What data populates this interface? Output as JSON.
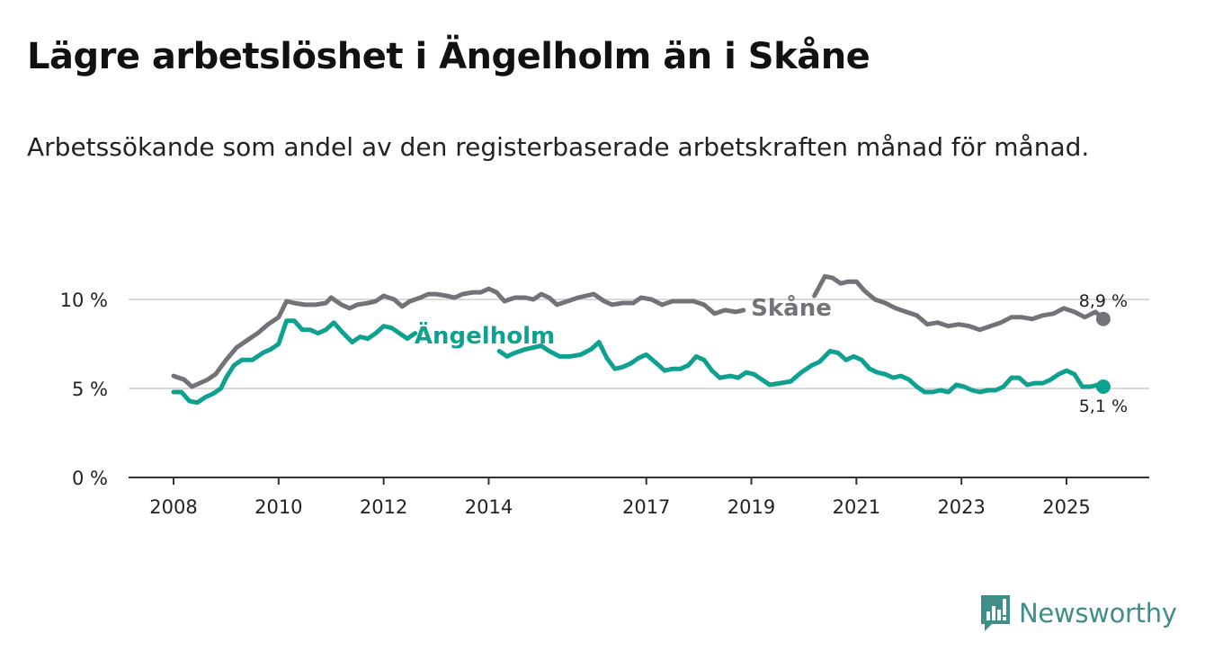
{
  "title": "Lägre arbetslöshet i Ängelholm än i Skåne",
  "subtitle": "Arbetssökande som andel av den registerbaserade arbetskraften månad för månad.",
  "brand": {
    "name": "Newsworthy",
    "color": "#3f8f87",
    "icon": "bar-chart-icon"
  },
  "chart_data": {
    "type": "line",
    "xlabel": "",
    "ylabel": "",
    "xlim": [
      2008,
      2025.75
    ],
    "ylim": [
      0,
      10
    ],
    "x_ticks": [
      2008,
      2010,
      2012,
      2014,
      2017,
      2019,
      2021,
      2023,
      2025
    ],
    "x_tick_labels": [
      "2008",
      "2010",
      "2012",
      "2014",
      "2017",
      "2019",
      "2021",
      "2023",
      "2025"
    ],
    "y_ticks": [
      0,
      5,
      10
    ],
    "y_tick_labels": [
      "0 %",
      "5 %",
      "10 %"
    ],
    "grid": true,
    "series": [
      {
        "name": "Skåne",
        "color": "#737278",
        "end_label": "8,9 %",
        "points": [
          [
            2008.0,
            5.7
          ],
          [
            2008.2,
            5.5
          ],
          [
            2008.35,
            5.1
          ],
          [
            2008.5,
            5.3
          ],
          [
            2008.65,
            5.5
          ],
          [
            2008.8,
            5.8
          ],
          [
            2009.0,
            6.6
          ],
          [
            2009.2,
            7.3
          ],
          [
            2009.4,
            7.7
          ],
          [
            2009.6,
            8.1
          ],
          [
            2009.8,
            8.6
          ],
          [
            2010.0,
            9.0
          ],
          [
            2010.15,
            9.9
          ],
          [
            2010.3,
            9.8
          ],
          [
            2010.5,
            9.7
          ],
          [
            2010.7,
            9.7
          ],
          [
            2010.9,
            9.8
          ],
          [
            2011.0,
            10.1
          ],
          [
            2011.2,
            9.7
          ],
          [
            2011.35,
            9.5
          ],
          [
            2011.5,
            9.7
          ],
          [
            2011.7,
            9.8
          ],
          [
            2011.85,
            9.9
          ],
          [
            2012.0,
            10.2
          ],
          [
            2012.2,
            10.0
          ],
          [
            2012.35,
            9.6
          ],
          [
            2012.5,
            9.9
          ],
          [
            2012.7,
            10.1
          ],
          [
            2012.85,
            10.3
          ],
          [
            2013.0,
            10.3
          ],
          [
            2013.2,
            10.2
          ],
          [
            2013.35,
            10.1
          ],
          [
            2013.5,
            10.3
          ],
          [
            2013.7,
            10.4
          ],
          [
            2013.85,
            10.4
          ],
          [
            2014.0,
            10.6
          ],
          [
            2014.15,
            10.4
          ],
          [
            2014.3,
            9.9
          ],
          [
            2014.5,
            10.1
          ],
          [
            2014.7,
            10.1
          ],
          [
            2014.85,
            10.0
          ],
          [
            2015.0,
            10.3
          ],
          [
            2015.15,
            10.1
          ],
          [
            2015.3,
            9.7
          ],
          [
            2015.5,
            9.9
          ],
          [
            2015.7,
            10.1
          ],
          [
            2015.85,
            10.2
          ],
          [
            2016.0,
            10.3
          ],
          [
            2016.2,
            9.9
          ],
          [
            2016.35,
            9.7
          ],
          [
            2016.55,
            9.8
          ],
          [
            2016.75,
            9.8
          ],
          [
            2016.9,
            10.1
          ],
          [
            2017.1,
            10.0
          ],
          [
            2017.3,
            9.7
          ],
          [
            2017.5,
            9.9
          ],
          [
            2017.7,
            9.9
          ],
          [
            2017.9,
            9.9
          ],
          [
            2018.1,
            9.7
          ],
          [
            2018.3,
            9.2
          ],
          [
            2018.5,
            9.4
          ],
          [
            2018.7,
            9.3
          ],
          [
            2018.85,
            9.4
          ]
        ],
        "points_b": [
          [
            2020.2,
            10.2
          ],
          [
            2020.4,
            11.3
          ],
          [
            2020.55,
            11.2
          ],
          [
            2020.7,
            10.9
          ],
          [
            2020.85,
            11.0
          ],
          [
            2021.0,
            11.0
          ],
          [
            2021.15,
            10.5
          ],
          [
            2021.35,
            10.0
          ],
          [
            2021.55,
            9.8
          ],
          [
            2021.75,
            9.5
          ],
          [
            2021.95,
            9.3
          ],
          [
            2022.15,
            9.1
          ],
          [
            2022.35,
            8.6
          ],
          [
            2022.55,
            8.7
          ],
          [
            2022.75,
            8.5
          ],
          [
            2022.95,
            8.6
          ],
          [
            2023.15,
            8.5
          ],
          [
            2023.35,
            8.3
          ],
          [
            2023.55,
            8.5
          ],
          [
            2023.75,
            8.7
          ],
          [
            2023.95,
            9.0
          ],
          [
            2024.15,
            9.0
          ],
          [
            2024.35,
            8.9
          ],
          [
            2024.55,
            9.1
          ],
          [
            2024.75,
            9.2
          ],
          [
            2024.95,
            9.5
          ],
          [
            2025.15,
            9.3
          ],
          [
            2025.35,
            9.0
          ],
          [
            2025.55,
            9.3
          ],
          [
            2025.7,
            8.9
          ]
        ]
      },
      {
        "name": "Ängelholm",
        "color": "#0fa190",
        "end_label": "5,1 %",
        "points": [
          [
            2008.0,
            4.8
          ],
          [
            2008.15,
            4.8
          ],
          [
            2008.3,
            4.3
          ],
          [
            2008.45,
            4.2
          ],
          [
            2008.6,
            4.5
          ],
          [
            2008.75,
            4.7
          ],
          [
            2008.9,
            5.0
          ],
          [
            2009.0,
            5.6
          ],
          [
            2009.15,
            6.3
          ],
          [
            2009.3,
            6.6
          ],
          [
            2009.5,
            6.6
          ],
          [
            2009.7,
            7.0
          ],
          [
            2009.85,
            7.2
          ],
          [
            2010.0,
            7.5
          ],
          [
            2010.15,
            8.8
          ],
          [
            2010.3,
            8.8
          ],
          [
            2010.45,
            8.3
          ],
          [
            2010.6,
            8.3
          ],
          [
            2010.75,
            8.1
          ],
          [
            2010.9,
            8.3
          ],
          [
            2011.05,
            8.7
          ],
          [
            2011.2,
            8.2
          ],
          [
            2011.4,
            7.6
          ],
          [
            2011.55,
            7.9
          ],
          [
            2011.7,
            7.8
          ],
          [
            2011.85,
            8.1
          ],
          [
            2012.0,
            8.5
          ],
          [
            2012.15,
            8.4
          ],
          [
            2012.3,
            8.1
          ],
          [
            2012.45,
            7.8
          ],
          [
            2012.6,
            8.1
          ]
        ],
        "points_b": [
          [
            2014.2,
            7.1
          ],
          [
            2014.35,
            6.8
          ],
          [
            2014.5,
            7.0
          ],
          [
            2014.7,
            7.2
          ],
          [
            2014.85,
            7.3
          ],
          [
            2015.0,
            7.4
          ],
          [
            2015.15,
            7.1
          ],
          [
            2015.35,
            6.8
          ],
          [
            2015.55,
            6.8
          ],
          [
            2015.75,
            6.9
          ],
          [
            2015.95,
            7.2
          ],
          [
            2016.1,
            7.6
          ],
          [
            2016.25,
            6.7
          ],
          [
            2016.4,
            6.1
          ],
          [
            2016.55,
            6.2
          ],
          [
            2016.7,
            6.4
          ],
          [
            2016.85,
            6.7
          ],
          [
            2017.0,
            6.9
          ],
          [
            2017.2,
            6.4
          ],
          [
            2017.35,
            6.0
          ],
          [
            2017.5,
            6.1
          ],
          [
            2017.65,
            6.1
          ],
          [
            2017.8,
            6.3
          ],
          [
            2017.95,
            6.8
          ],
          [
            2018.1,
            6.6
          ],
          [
            2018.25,
            6.0
          ],
          [
            2018.4,
            5.6
          ],
          [
            2018.6,
            5.7
          ],
          [
            2018.75,
            5.6
          ],
          [
            2018.9,
            5.9
          ],
          [
            2019.05,
            5.8
          ],
          [
            2019.2,
            5.5
          ],
          [
            2019.35,
            5.2
          ],
          [
            2019.55,
            5.3
          ],
          [
            2019.75,
            5.4
          ],
          [
            2019.95,
            5.9
          ],
          [
            2020.15,
            6.3
          ],
          [
            2020.3,
            6.5
          ],
          [
            2020.5,
            7.1
          ],
          [
            2020.65,
            7.0
          ],
          [
            2020.8,
            6.6
          ],
          [
            2020.95,
            6.8
          ],
          [
            2021.1,
            6.6
          ],
          [
            2021.25,
            6.1
          ],
          [
            2021.4,
            5.9
          ],
          [
            2021.55,
            5.8
          ],
          [
            2021.7,
            5.6
          ],
          [
            2021.85,
            5.7
          ],
          [
            2022.0,
            5.5
          ],
          [
            2022.15,
            5.1
          ],
          [
            2022.3,
            4.8
          ],
          [
            2022.45,
            4.8
          ],
          [
            2022.6,
            4.9
          ],
          [
            2022.75,
            4.8
          ],
          [
            2022.9,
            5.2
          ],
          [
            2023.05,
            5.1
          ],
          [
            2023.2,
            4.9
          ],
          [
            2023.35,
            4.8
          ],
          [
            2023.5,
            4.9
          ],
          [
            2023.65,
            4.9
          ],
          [
            2023.8,
            5.1
          ],
          [
            2023.95,
            5.6
          ],
          [
            2024.1,
            5.6
          ],
          [
            2024.25,
            5.2
          ],
          [
            2024.4,
            5.3
          ],
          [
            2024.55,
            5.3
          ],
          [
            2024.7,
            5.5
          ],
          [
            2024.85,
            5.8
          ],
          [
            2025.0,
            6.0
          ],
          [
            2025.15,
            5.8
          ],
          [
            2025.3,
            5.1
          ],
          [
            2025.45,
            5.1
          ],
          [
            2025.6,
            5.2
          ],
          [
            2025.7,
            5.1
          ]
        ]
      }
    ],
    "annotations": [
      "Skåne",
      "Ängelholm"
    ]
  }
}
